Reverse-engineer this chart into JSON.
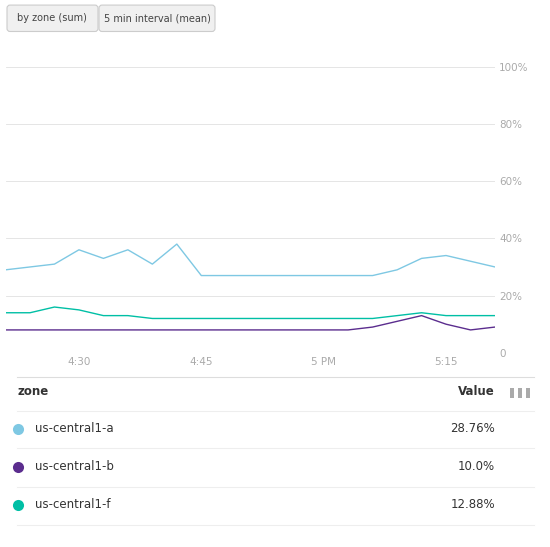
{
  "button1_text": "by zone (sum)",
  "button2_text": "5 min interval (mean)",
  "x_ticks": [
    "4:30",
    "4:45",
    "5 PM",
    "5:15"
  ],
  "x_values": [
    0,
    1,
    2,
    3,
    4,
    5,
    6,
    7,
    8,
    9,
    10,
    11,
    12,
    13,
    14,
    15,
    16,
    17,
    18,
    19,
    20
  ],
  "series_a": {
    "label": "us-central1-a",
    "color": "#7ec8e3",
    "value": "28.76%",
    "data": [
      29,
      30,
      31,
      36,
      33,
      36,
      31,
      38,
      27,
      27,
      27,
      27,
      27,
      27,
      27,
      27,
      29,
      33,
      34,
      32,
      30
    ]
  },
  "series_b": {
    "label": "us-central1-b",
    "color": "#5b2d8e",
    "value": "10.0%",
    "data": [
      8,
      8,
      8,
      8,
      8,
      8,
      8,
      8,
      8,
      8,
      8,
      8,
      8,
      8,
      8,
      9,
      11,
      13,
      10,
      8,
      9
    ]
  },
  "series_f": {
    "label": "us-central1-f",
    "color": "#00bfa5",
    "value": "12.88%",
    "data": [
      14,
      14,
      16,
      15,
      13,
      13,
      12,
      12,
      12,
      12,
      12,
      12,
      12,
      12,
      12,
      12,
      13,
      14,
      13,
      13,
      13
    ]
  },
  "yticks": [
    0,
    20,
    40,
    60,
    80,
    100
  ],
  "ytick_labels": [
    "0",
    "20%",
    "40%",
    "60%",
    "80%",
    "100%"
  ],
  "ylim": [
    0,
    108
  ],
  "background_color": "#ffffff",
  "grid_color": "#e0e0e0",
  "text_color": "#aaaaaa",
  "x_tick_positions": [
    3,
    8,
    13,
    18
  ],
  "legend_header_zone": "zone",
  "legend_header_value": "Value"
}
